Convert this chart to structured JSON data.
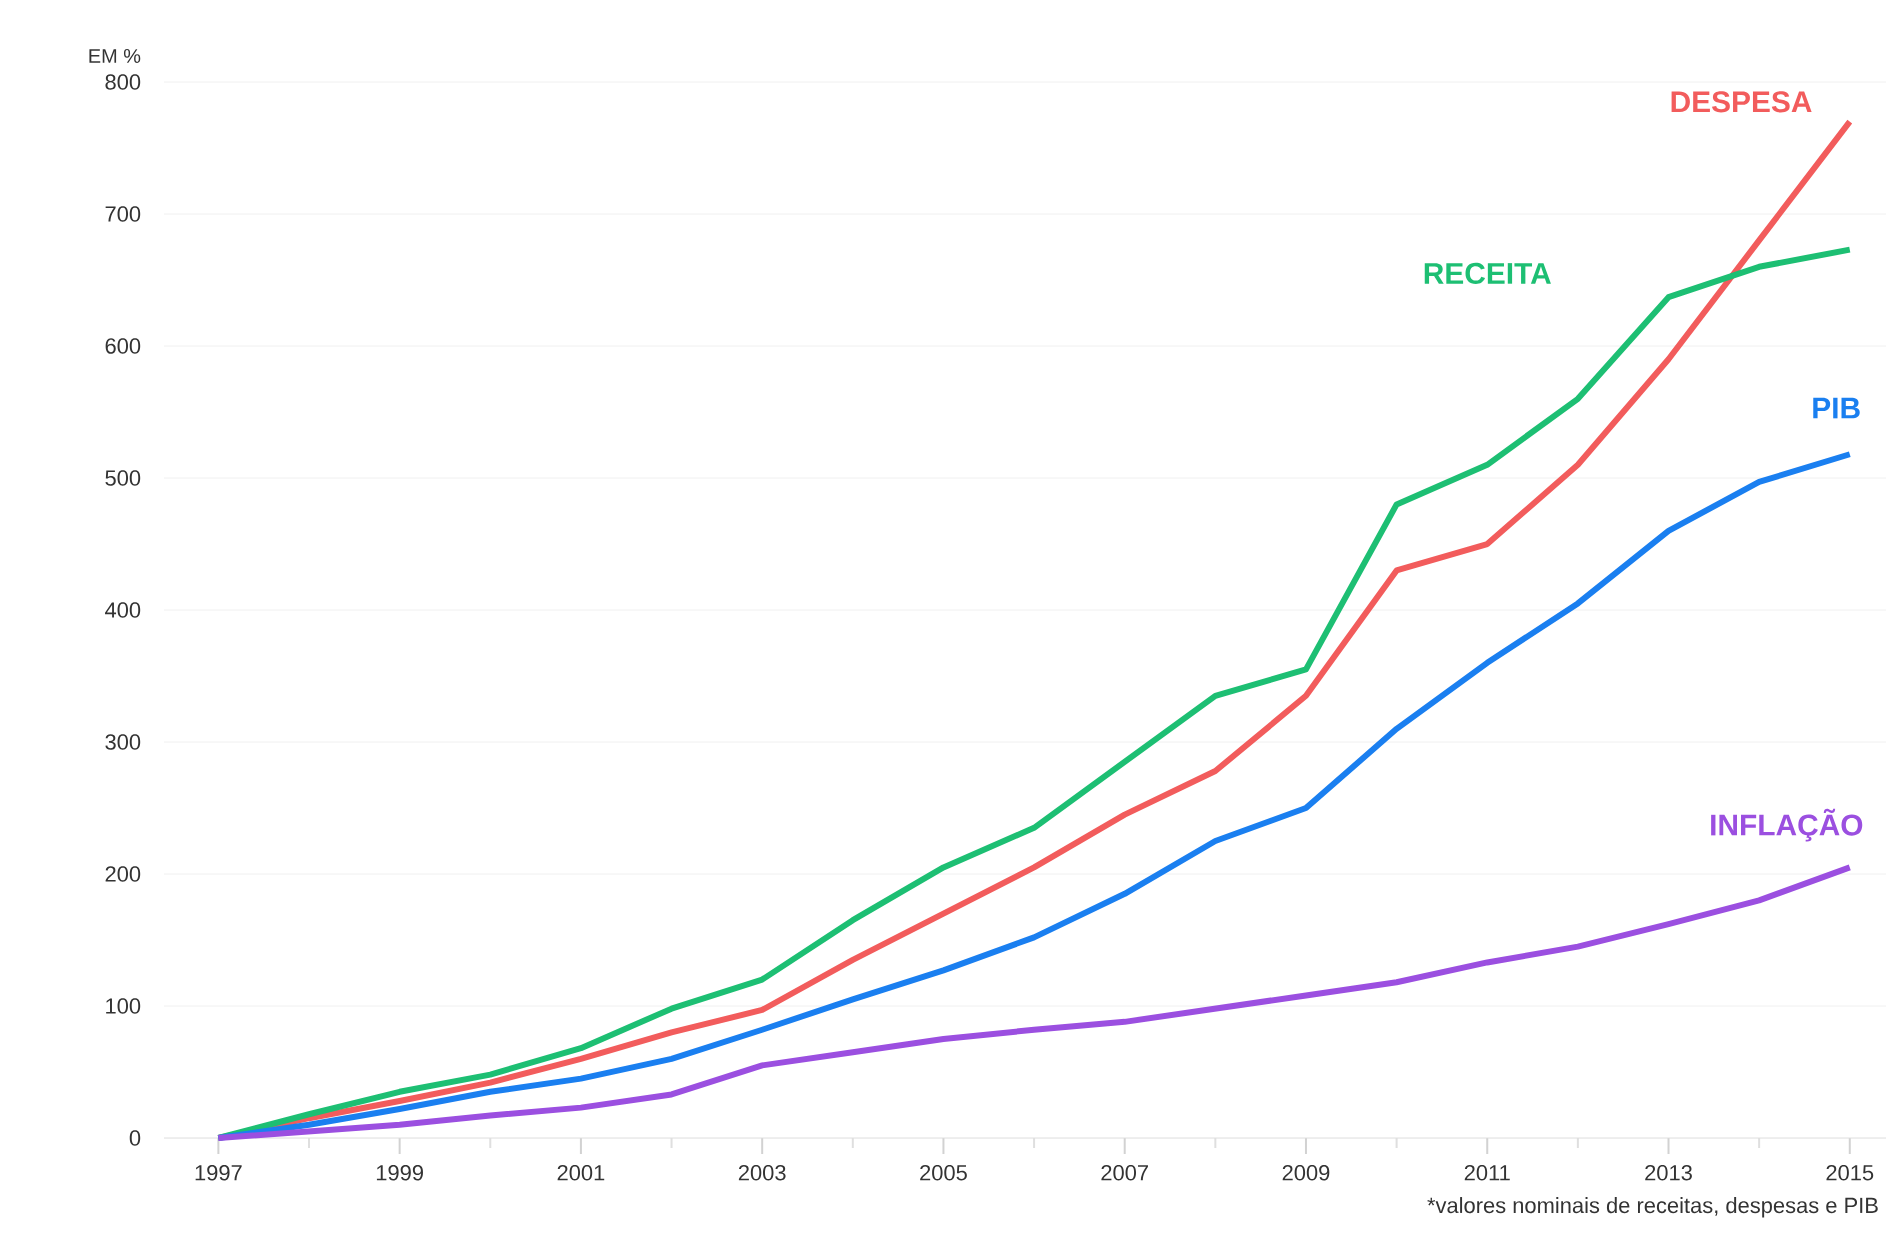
{
  "chart_data": {
    "type": "line",
    "ylabel": "EM %",
    "x": [
      1997,
      1998,
      1999,
      2000,
      2001,
      2002,
      2003,
      2004,
      2005,
      2006,
      2007,
      2008,
      2009,
      2010,
      2011,
      2012,
      2013,
      2014,
      2015
    ],
    "series": [
      {
        "name": "DESPESA",
        "color": "#f25c5c",
        "values": [
          0,
          15,
          28,
          42,
          60,
          80,
          97,
          135,
          170,
          205,
          245,
          278,
          335,
          430,
          450,
          510,
          590,
          680,
          770
        ]
      },
      {
        "name": "RECEITA",
        "color": "#1dbf73",
        "values": [
          0,
          18,
          35,
          48,
          68,
          98,
          120,
          165,
          205,
          235,
          285,
          335,
          355,
          480,
          510,
          560,
          637,
          660,
          673
        ]
      },
      {
        "name": "PIB",
        "color": "#1a7ff0",
        "values": [
          0,
          10,
          22,
          35,
          45,
          60,
          82,
          105,
          127,
          152,
          185,
          225,
          250,
          310,
          360,
          405,
          460,
          497,
          518
        ]
      },
      {
        "name": "INFLAÇÃO",
        "color": "#9b4fe0",
        "values": [
          0,
          5,
          10,
          17,
          23,
          33,
          55,
          65,
          75,
          82,
          88,
          98,
          108,
          118,
          133,
          145,
          162,
          180,
          205
        ]
      }
    ],
    "xlim": [
      1996.4,
      2015.4
    ],
    "xticks": [
      1997,
      1999,
      2001,
      2003,
      2005,
      2007,
      2009,
      2011,
      2013,
      2015
    ],
    "ylim": [
      0,
      800
    ],
    "yticks": [
      0,
      100,
      200,
      300,
      400,
      500,
      600,
      700,
      800
    ],
    "grid": "y",
    "legend": false,
    "marker": "none",
    "line_style": "solid",
    "annotations": [
      "*valores nominais de receitas, despesas e PIB"
    ]
  }
}
